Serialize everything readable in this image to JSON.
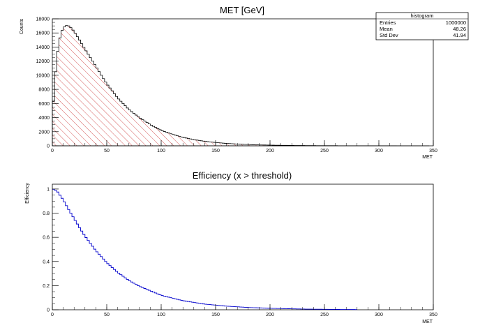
{
  "chart_data": [
    {
      "type": "bar",
      "subtype": "histogram",
      "title": "MET [GeV]",
      "xlabel": "MET",
      "ylabel": "Counts",
      "xlim": [
        0,
        350
      ],
      "ylim": [
        0,
        18000
      ],
      "xticks": [
        "0",
        "50",
        "100",
        "150",
        "200",
        "250",
        "300",
        "350"
      ],
      "yticks": [
        "0",
        "2000",
        "4000",
        "6000",
        "8000",
        "10000",
        "12000",
        "14000",
        "16000",
        "18000"
      ],
      "fill": "red diagonal hatch",
      "series": [
        {
          "x": [
            0,
            2,
            4,
            6,
            8,
            10,
            12,
            14,
            16,
            18,
            20,
            25,
            30,
            35,
            40,
            45,
            50,
            55,
            60,
            65,
            70,
            80,
            90,
            100,
            110,
            120,
            130,
            140,
            150,
            160,
            170,
            180,
            190,
            200,
            220,
            240,
            260,
            280,
            300,
            320,
            340
          ],
          "values": [
            3800,
            8800,
            12200,
            14600,
            16000,
            16700,
            17000,
            17100,
            16900,
            16600,
            16200,
            15000,
            13700,
            12500,
            11300,
            10000,
            8800,
            7800,
            6800,
            6000,
            5200,
            4000,
            3000,
            2200,
            1650,
            1200,
            880,
            640,
            470,
            340,
            250,
            180,
            130,
            100,
            55,
            30,
            17,
            10,
            6,
            3,
            2
          ]
        }
      ],
      "stats_box": {
        "title": "histogram",
        "rows": [
          {
            "label": "Entries",
            "value": "1000000"
          },
          {
            "label": "Mean",
            "value": "48.26"
          },
          {
            "label": "Std Dev",
            "value": "41.94"
          }
        ]
      }
    },
    {
      "type": "line",
      "subtype": "step",
      "title": "Efficiency (x > threshold)",
      "xlabel": "MET",
      "ylabel": "Efficiency",
      "xlim": [
        0,
        350
      ],
      "ylim": [
        0,
        1.04
      ],
      "xticks": [
        "0",
        "50",
        "100",
        "150",
        "200",
        "250",
        "300",
        "350"
      ],
      "yticks": [
        "0",
        "0.2",
        "0.4",
        "0.6",
        "0.8",
        "1"
      ],
      "line_color": "#0000cc",
      "series": [
        {
          "x": [
            0,
            2,
            5,
            10,
            15,
            20,
            25,
            30,
            40,
            50,
            60,
            70,
            80,
            100,
            120,
            140,
            160,
            180,
            200,
            230,
            260,
            280
          ],
          "values": [
            1.0,
            0.995,
            0.975,
            0.91,
            0.83,
            0.755,
            0.68,
            0.61,
            0.49,
            0.39,
            0.31,
            0.245,
            0.195,
            0.12,
            0.075,
            0.047,
            0.03,
            0.019,
            0.012,
            0.006,
            0.003,
            0.002
          ]
        }
      ]
    }
  ]
}
